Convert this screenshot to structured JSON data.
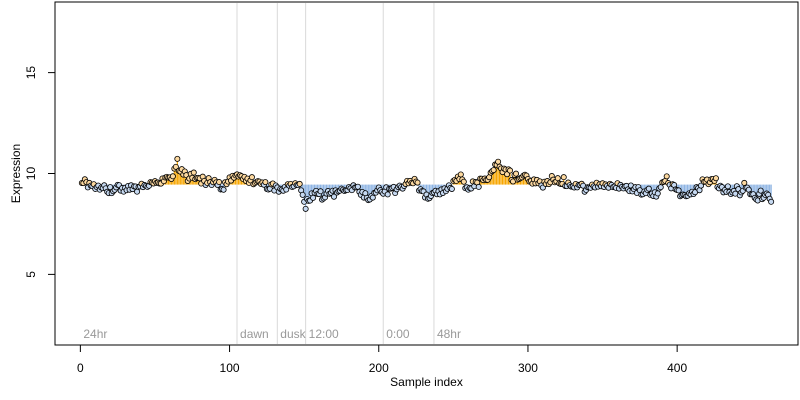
{
  "chart_data": {
    "type": "scatter",
    "title": "",
    "xlabel": "Sample index",
    "ylabel": "Expression",
    "xlim": [
      -17,
      481
    ],
    "ylim": [
      1.5,
      18.5
    ],
    "baseline": 9.45,
    "x_ticks": [
      0,
      100,
      200,
      300,
      400
    ],
    "y_ticks": [
      5,
      10,
      15
    ],
    "grid": false,
    "legend": "none",
    "colors": {
      "above": "#f7a600",
      "below": "#8eb4e3",
      "point_fill_above": "#fdd9a0",
      "point_fill_below": "#c6d9f1",
      "point_stroke": "#000000",
      "divider": "#d9d9d9",
      "phase_label": "#999999"
    },
    "phase_markers": [
      {
        "label": "24hr",
        "x": 0,
        "line": false
      },
      {
        "label": "dawn",
        "x": 105,
        "line": true
      },
      {
        "label": "dusk",
        "x": 132,
        "line": true
      },
      {
        "label": "12:00",
        "x": 151,
        "line": true
      },
      {
        "label": "0:00",
        "x": 203,
        "line": true
      },
      {
        "label": "48hr",
        "x": 237,
        "line": true
      }
    ],
    "anchors": [
      [
        1,
        9.6
      ],
      [
        10,
        9.4
      ],
      [
        14,
        9.3
      ],
      [
        20,
        9.15
      ],
      [
        27,
        9.35
      ],
      [
        35,
        9.25
      ],
      [
        45,
        9.45
      ],
      [
        55,
        9.6
      ],
      [
        62,
        9.85
      ],
      [
        65,
        10.5
      ],
      [
        70,
        9.9
      ],
      [
        80,
        9.7
      ],
      [
        90,
        9.55
      ],
      [
        95,
        9.2
      ],
      [
        100,
        9.7
      ],
      [
        105,
        10.0
      ],
      [
        112,
        9.7
      ],
      [
        120,
        9.45
      ],
      [
        130,
        9.35
      ],
      [
        135,
        9.1
      ],
      [
        140,
        9.45
      ],
      [
        147,
        9.5
      ],
      [
        151,
        8.5
      ],
      [
        156,
        9.0
      ],
      [
        165,
        8.9
      ],
      [
        175,
        9.15
      ],
      [
        185,
        9.4
      ],
      [
        193,
        8.75
      ],
      [
        200,
        9.1
      ],
      [
        208,
        9.2
      ],
      [
        215,
        9.3
      ],
      [
        222,
        9.7
      ],
      [
        228,
        9.2
      ],
      [
        233,
        8.8
      ],
      [
        240,
        9.1
      ],
      [
        248,
        9.3
      ],
      [
        253,
        9.9
      ],
      [
        260,
        9.2
      ],
      [
        268,
        9.6
      ],
      [
        275,
        10.0
      ],
      [
        280,
        10.35
      ],
      [
        285,
        10.2
      ],
      [
        290,
        9.75
      ],
      [
        295,
        9.9
      ],
      [
        303,
        9.6
      ],
      [
        310,
        9.5
      ],
      [
        320,
        9.65
      ],
      [
        330,
        9.35
      ],
      [
        340,
        9.3
      ],
      [
        352,
        9.4
      ],
      [
        360,
        9.45
      ],
      [
        368,
        9.25
      ],
      [
        378,
        9.1
      ],
      [
        387,
        9.0
      ],
      [
        392,
        9.75
      ],
      [
        397,
        9.4
      ],
      [
        405,
        8.95
      ],
      [
        412,
        9.05
      ],
      [
        418,
        9.8
      ],
      [
        424,
        9.6
      ],
      [
        430,
        9.25
      ],
      [
        438,
        9.05
      ],
      [
        446,
        9.3
      ],
      [
        452,
        8.75
      ],
      [
        458,
        8.95
      ],
      [
        463,
        8.6
      ]
    ]
  }
}
